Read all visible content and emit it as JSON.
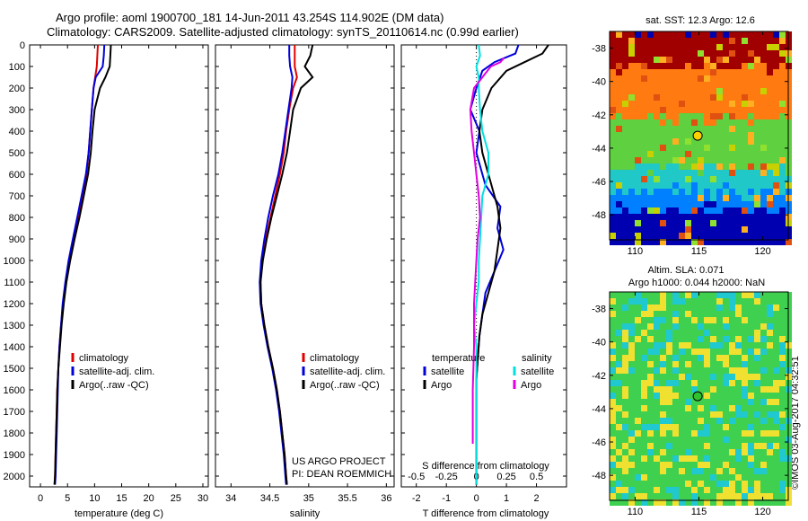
{
  "header": {
    "title_line1": "Argo profile: aoml 1900700_181 14-Jun-2011 43.254S 114.902E (DM data)",
    "title_line2": "Climatology: CARS2009. Satellite-adjusted climatology: synTS_20110614.nc (0.99d earlier)"
  },
  "colors": {
    "climatology": "#e00000",
    "satellite": "#0000dd",
    "argo": "#000000",
    "argo_salinity": "#e000e0",
    "satellite_salinity": "#00e0e0"
  },
  "chart_data": [
    {
      "type": "line",
      "id": "temperature",
      "xlabel": "temperature (deg C)",
      "ylabel": "",
      "xlim": [
        -2,
        31
      ],
      "ylim": [
        2050,
        0
      ],
      "xticks": [
        0,
        5,
        10,
        15,
        20,
        25,
        30
      ],
      "yticks": [
        0,
        100,
        200,
        300,
        400,
        500,
        600,
        700,
        800,
        900,
        1000,
        1100,
        1200,
        1300,
        1400,
        1500,
        1600,
        1700,
        1800,
        1900,
        2000
      ],
      "legend": [
        "climatology",
        "satellite-adj. clim.",
        "Argo(..raw -QC)"
      ],
      "series": [
        {
          "name": "climatology",
          "color": "#e00000",
          "x": [
            10.6,
            10.5,
            10.4,
            10.1,
            9.8,
            9.5,
            9.2,
            8.9,
            8.5,
            7.9,
            7.1,
            6.2,
            5.4,
            4.7,
            4.2,
            3.8,
            3.5,
            3.3,
            3.1,
            3.0,
            2.9,
            2.8,
            2.7,
            2.6
          ],
          "y": [
            0,
            50,
            100,
            150,
            200,
            300,
            400,
            500,
            600,
            700,
            800,
            900,
            1000,
            1100,
            1200,
            1300,
            1400,
            1500,
            1600,
            1700,
            1800,
            1900,
            2000,
            2040
          ]
        },
        {
          "name": "satellite-adj. clim.",
          "color": "#0000dd",
          "x": [
            11.8,
            11.7,
            11.5,
            10.2,
            9.8,
            9.5,
            9.2,
            8.9,
            8.4,
            7.6,
            6.8,
            6.0,
            5.2,
            4.6,
            4.1,
            3.8,
            3.5,
            3.3,
            3.2,
            3.1,
            3.0,
            2.9,
            2.8,
            2.7
          ],
          "y": [
            0,
            50,
            100,
            150,
            200,
            300,
            400,
            500,
            600,
            700,
            800,
            900,
            1000,
            1100,
            1200,
            1300,
            1400,
            1500,
            1600,
            1700,
            1800,
            1900,
            2000,
            2040
          ]
        },
        {
          "name": "Argo(..raw -QC)",
          "color": "#000000",
          "x": [
            13.0,
            12.9,
            12.8,
            12.0,
            11.0,
            10.0,
            9.6,
            9.3,
            8.8,
            8.0,
            7.2,
            6.3,
            5.5,
            4.8,
            4.3,
            3.9,
            3.6,
            3.3,
            3.1,
            3.0,
            2.9,
            2.8,
            2.7,
            2.6
          ],
          "y": [
            0,
            50,
            100,
            150,
            200,
            300,
            400,
            500,
            600,
            700,
            800,
            900,
            1000,
            1100,
            1200,
            1300,
            1400,
            1500,
            1600,
            1700,
            1800,
            1900,
            2000,
            2040
          ]
        }
      ]
    },
    {
      "type": "line",
      "id": "salinity",
      "xlabel": "salinity",
      "ylabel": "",
      "xlim": [
        33.8,
        36.1
      ],
      "ylim": [
        2050,
        0
      ],
      "xticks": [
        34,
        34.5,
        35,
        35.5,
        36
      ],
      "xticklabels": [
        "34",
        "34.5",
        "35",
        "35.5",
        "36"
      ],
      "legend": [
        "climatology",
        "satellite-adj. clim.",
        "Argo(..raw -QC)"
      ],
      "series": [
        {
          "name": "climatology",
          "color": "#e00000",
          "x": [
            34.82,
            34.82,
            34.82,
            34.85,
            34.8,
            34.75,
            34.71,
            34.68,
            34.63,
            34.57,
            34.51,
            34.45,
            34.4,
            34.38,
            34.39,
            34.43,
            34.48,
            34.54,
            34.59,
            34.63,
            34.66,
            34.69,
            34.71,
            34.72
          ],
          "y": [
            0,
            50,
            100,
            150,
            200,
            300,
            400,
            500,
            600,
            700,
            800,
            900,
            1000,
            1100,
            1200,
            1300,
            1400,
            1500,
            1600,
            1700,
            1800,
            1900,
            2000,
            2040
          ]
        },
        {
          "name": "satellite-adj. clim.",
          "color": "#0000dd",
          "x": [
            34.75,
            34.75,
            34.76,
            34.79,
            34.78,
            34.74,
            34.7,
            34.66,
            34.61,
            34.54,
            34.48,
            34.43,
            34.39,
            34.37,
            34.38,
            34.42,
            34.47,
            34.53,
            34.58,
            34.62,
            34.65,
            34.68,
            34.7,
            34.71
          ],
          "y": [
            0,
            50,
            100,
            150,
            200,
            300,
            400,
            500,
            600,
            700,
            800,
            900,
            1000,
            1100,
            1200,
            1300,
            1400,
            1500,
            1600,
            1700,
            1800,
            1900,
            2000,
            2040
          ]
        },
        {
          "name": "Argo(..raw -QC)",
          "color": "#000000",
          "x": [
            35.05,
            35.02,
            34.95,
            35.05,
            34.9,
            34.8,
            34.76,
            34.72,
            34.66,
            34.59,
            34.52,
            34.46,
            34.41,
            34.38,
            34.39,
            34.43,
            34.48,
            34.54,
            34.59,
            34.63,
            34.66,
            34.69,
            34.71,
            34.72
          ],
          "y": [
            0,
            50,
            100,
            150,
            200,
            300,
            400,
            500,
            600,
            700,
            800,
            900,
            1000,
            1100,
            1200,
            1300,
            1400,
            1500,
            1600,
            1700,
            1800,
            1900,
            2000,
            2040
          ]
        }
      ],
      "annotations": [
        "US ARGO PROJECT",
        "PI: DEAN ROEMMICH"
      ]
    },
    {
      "type": "line",
      "id": "difference",
      "xlabel": "T difference from climatology",
      "xlabel2": "S difference from climatology",
      "xlim": [
        -2.5,
        3
      ],
      "ylim": [
        2050,
        0
      ],
      "xticks": [
        -2,
        -1,
        0,
        1,
        2
      ],
      "xticklabels": [
        "-2",
        "-1",
        "0",
        "1",
        "2"
      ],
      "xticks2": [
        -0.5,
        -0.25,
        0,
        0.25,
        0.5
      ],
      "xticklabels2": [
        "-0.5",
        "-0.25",
        "0",
        "0.25",
        "0.5"
      ],
      "legend_headers": [
        "temperature",
        "salinity"
      ],
      "legend": [
        "satellite",
        "Argo",
        "satellite",
        "Argo"
      ],
      "series": [
        {
          "name": "satellite",
          "quantity": "temperature",
          "color": "#0000dd",
          "x": [
            1.4,
            1.3,
            0.6,
            0.2,
            0.0,
            -0.2,
            0.1,
            0.0,
            0.3,
            0.8,
            0.7,
            0.9,
            0.6,
            0.3,
            0.2,
            0.1,
            0.05,
            0.0,
            0.0,
            0.0,
            0.0,
            0.0,
            0.0
          ],
          "y": [
            0,
            40,
            80,
            120,
            200,
            300,
            400,
            500,
            650,
            750,
            850,
            950,
            1050,
            1150,
            1250,
            1350,
            1450,
            1550,
            1650,
            1750,
            1850,
            1950,
            2040
          ]
        },
        {
          "name": "Argo",
          "quantity": "temperature",
          "color": "#000000",
          "x": [
            2.4,
            2.2,
            1.6,
            1.0,
            0.5,
            0.2,
            0.1,
            0.2,
            0.5,
            0.7,
            0.8,
            0.7,
            0.6,
            0.4,
            0.2,
            0.1,
            0.05,
            0.0,
            0.0,
            0.0,
            0.0,
            0.0,
            0.0
          ],
          "y": [
            0,
            40,
            80,
            120,
            200,
            300,
            400,
            500,
            650,
            750,
            850,
            950,
            1050,
            1150,
            1250,
            1350,
            1450,
            1550,
            1650,
            1750,
            1850,
            1950,
            2040
          ]
        },
        {
          "name": "satellite",
          "quantity": "salinity",
          "color": "#00e0e0",
          "x": [
            0.02,
            0.03,
            0.0,
            0.02,
            0.02,
            0.03,
            0.05,
            0.1,
            0.1,
            0.05,
            0.04,
            0.03,
            0.02,
            0.02,
            0.0,
            -0.02,
            0.0,
            0.0,
            0.0,
            0.0,
            0.0,
            0.0
          ],
          "y": [
            0,
            50,
            100,
            150,
            200,
            300,
            400,
            500,
            600,
            700,
            800,
            900,
            1000,
            1100,
            1200,
            1300,
            1400,
            1500,
            1600,
            1700,
            1800,
            2040
          ]
        },
        {
          "name": "Argo",
          "quantity": "salinity",
          "color": "#e000e0",
          "x": [
            0.23,
            0.2,
            0.12,
            0.05,
            -0.02,
            -0.05,
            -0.04,
            -0.02,
            0.0,
            0.02,
            0.03,
            0.01,
            0.0,
            -0.01,
            -0.02,
            -0.02,
            -0.03,
            -0.03,
            -0.03
          ],
          "y": [
            60,
            80,
            100,
            150,
            200,
            300,
            400,
            500,
            600,
            700,
            800,
            900,
            1000,
            1100,
            1200,
            1400,
            1600,
            1800,
            1850
          ]
        }
      ]
    },
    {
      "type": "heatmap",
      "id": "sst-map",
      "title": "sat. SST: 12.3 Argo: 12.6",
      "xlim": [
        108,
        122
      ],
      "ylim": [
        -49.5,
        -37
      ],
      "xticks": [
        110,
        115,
        120
      ],
      "xticklabels": [
        "110",
        "115",
        "120"
      ],
      "yticks": [
        -38,
        -40,
        -42,
        -44,
        -46,
        -48
      ],
      "yticklabels": [
        "-38",
        "-40",
        "-42",
        "-44",
        "-46",
        "-48"
      ],
      "marker": {
        "lon": 114.902,
        "lat": -43.254,
        "color": "#ffd000"
      },
      "zones": [
        {
          "lat_from": -37,
          "lat_to": -39.2,
          "color": "#a00000"
        },
        {
          "lat_from": -39.2,
          "lat_to": -42.2,
          "color": "#ff7a10"
        },
        {
          "lat_from": -42.2,
          "lat_to": -45.2,
          "color": "#5fd040"
        },
        {
          "lat_from": -45.2,
          "lat_to": -46.6,
          "color": "#20c8c8"
        },
        {
          "lat_from": -46.6,
          "lat_to": -47.6,
          "color": "#0080ff"
        },
        {
          "lat_from": -47.6,
          "lat_to": -49.5,
          "color": "#0000b0"
        }
      ]
    },
    {
      "type": "heatmap",
      "id": "sla-map",
      "title": "Altim. SLA: 0.071",
      "subtitle": "Argo h1000: 0.044 h2000: NaN",
      "xlim": [
        108,
        122
      ],
      "ylim": [
        -49.5,
        -37
      ],
      "xticks": [
        110,
        115,
        120
      ],
      "xticklabels": [
        "110",
        "115",
        "120"
      ],
      "yticks": [
        -38,
        -40,
        -42,
        -44,
        -46,
        -48
      ],
      "yticklabels": [
        "-38",
        "-40",
        "-42",
        "-44",
        "-46",
        "-48"
      ],
      "marker": {
        "lon": 114.902,
        "lat": -43.254,
        "color": "#30c030"
      },
      "zones": [
        {
          "color": "#40d050"
        },
        {
          "color": "#f0e030"
        },
        {
          "color": "#20c8d0"
        }
      ]
    }
  ],
  "credit": "©IMOS 03-Aug-2017 04:32:51"
}
